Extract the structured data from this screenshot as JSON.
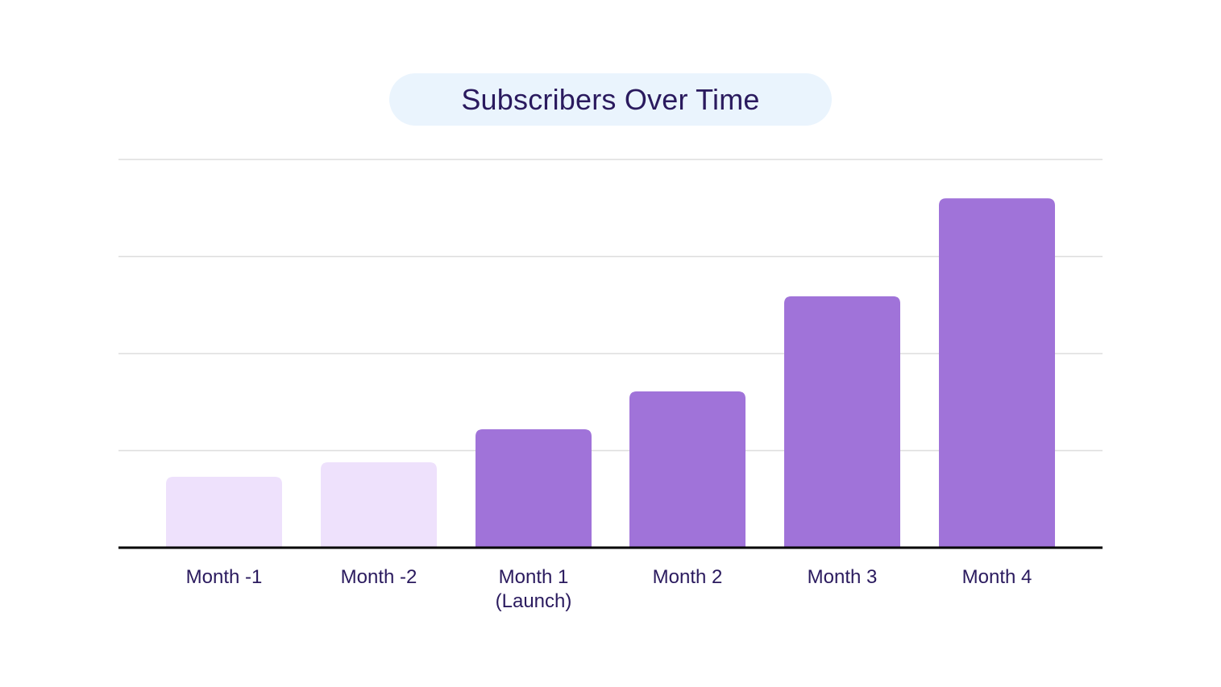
{
  "chart_data": {
    "type": "bar",
    "title": "Subscribers Over Time",
    "xlabel": "",
    "ylabel": "",
    "categories": [
      [
        "Month -1"
      ],
      [
        "Month -2"
      ],
      [
        "Month 1",
        "(Launch)"
      ],
      [
        "Month 2"
      ],
      [
        "Month 3"
      ],
      [
        "Month 4"
      ]
    ],
    "values": [
      0.73,
      0.88,
      1.22,
      1.61,
      2.59,
      3.6
    ],
    "ylim": [
      0,
      4
    ],
    "grid": true,
    "legend": "none",
    "colors": {
      "pre_launch": "#eee1fc",
      "post_launch": "#a073d9",
      "baseline": "#000000",
      "grid": "#dddddd",
      "title_bg": "#eaf4fd",
      "text": "#2a1a5e"
    },
    "bar_color_groups": [
      "pre_launch",
      "pre_launch",
      "post_launch",
      "post_launch",
      "post_launch",
      "post_launch"
    ]
  }
}
